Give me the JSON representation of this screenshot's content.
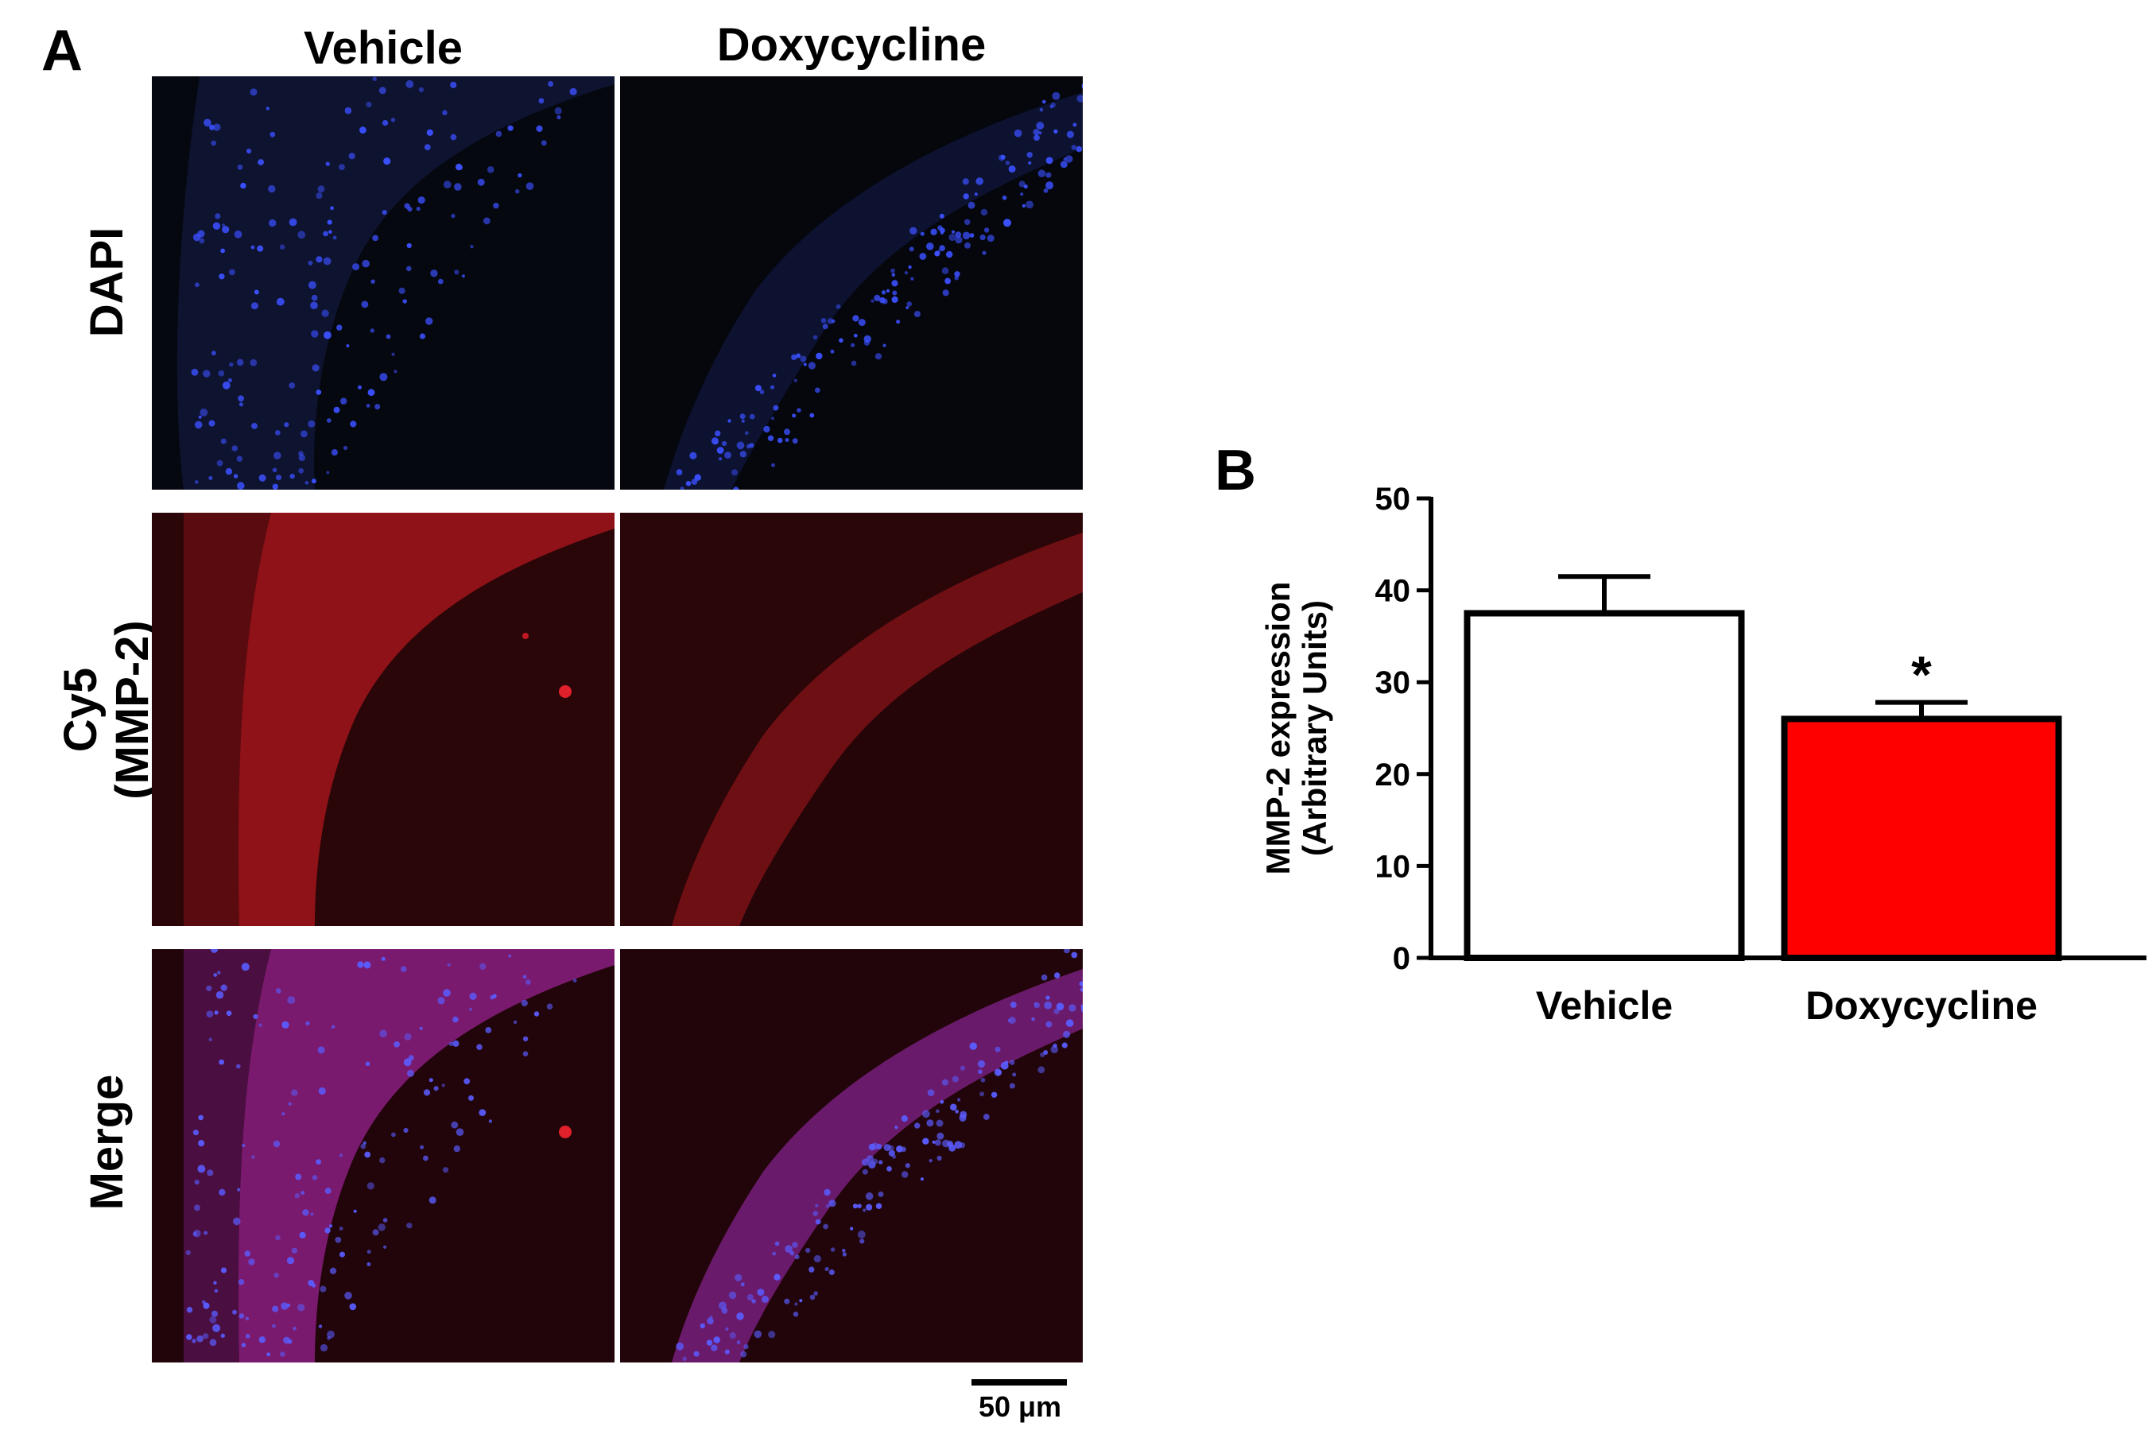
{
  "panel_a": {
    "letter": "A",
    "columns": [
      "Vehicle",
      "Doxycycline"
    ],
    "rows": [
      "DAPI",
      "Cy5\n(MMP-2)",
      "Merge"
    ],
    "scale_bar": "50 μm"
  },
  "panel_b": {
    "letter": "B"
  },
  "chart_data": {
    "type": "bar",
    "categories": [
      "Vehicle",
      "Doxycycline"
    ],
    "values": [
      37.5,
      26
    ],
    "errors": [
      4,
      1.8
    ],
    "bar_colors": [
      "#ffffff",
      "#ff0000"
    ],
    "edge_color": "#000000",
    "ylabel": "MMP-2 expression\n(Arbitrary Units)",
    "xlabel": "",
    "title": "",
    "ylim": [
      0,
      50
    ],
    "yticks": [
      0,
      10,
      20,
      30,
      40,
      50
    ],
    "annotations": [
      {
        "category": "Doxycycline",
        "text": "*"
      }
    ]
  },
  "colors": {
    "dapi_nuclei": "#3b50ff",
    "cy5_tissue": "#a0141c",
    "merge_tissue": "#8a1e8c",
    "background_dark": "#0a0a12"
  }
}
